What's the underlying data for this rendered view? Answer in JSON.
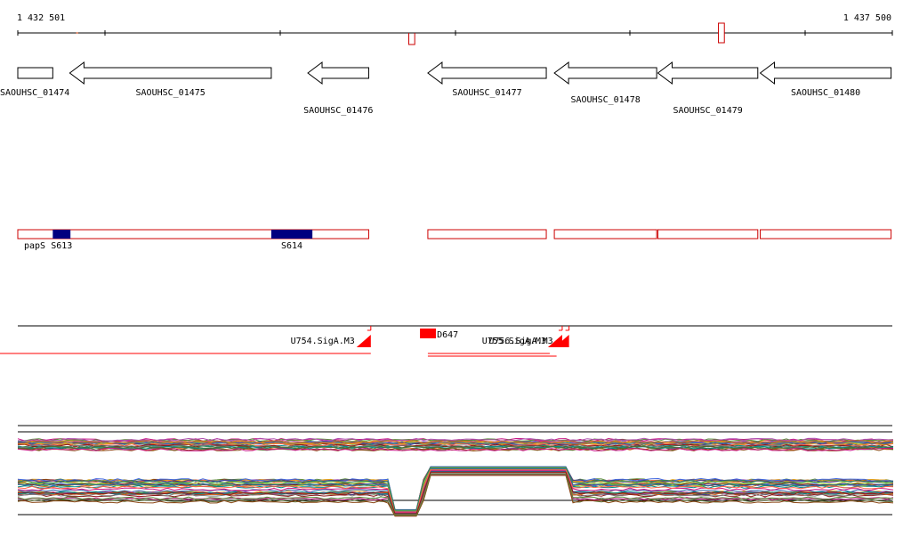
{
  "ruler": {
    "start_label": "1 432 501",
    "end_label": "1 437 500",
    "start": 1432501,
    "end": 1437500,
    "tick_interval": 1000,
    "marks": [
      {
        "type": "inward",
        "from": 1434736,
        "to": 1434770
      },
      {
        "type": "outward",
        "from": 1436506,
        "to": 1436540
      },
      {
        "type": "dot",
        "at": 1432835
      }
    ]
  },
  "genes": [
    {
      "name": "SAOUHSC_01474",
      "start": 1432501,
      "end": 1432701,
      "strand": "+"
    },
    {
      "name": "SAOUHSC_01475",
      "start": 1432798,
      "end": 1433950,
      "strand": "-"
    },
    {
      "name": "SAOUHSC_01476",
      "start": 1434159,
      "end": 1434507,
      "strand": "-"
    },
    {
      "name": "SAOUHSC_01477",
      "start": 1434845,
      "end": 1435522,
      "strand": "-"
    },
    {
      "name": "SAOUHSC_01478",
      "start": 1435568,
      "end": 1436153,
      "strand": "-"
    },
    {
      "name": "SAOUHSC_01479",
      "start": 1436160,
      "end": 1436731,
      "strand": "-"
    },
    {
      "name": "SAOUHSC_01480",
      "start": 1436745,
      "end": 1437493,
      "strand": "-"
    }
  ],
  "operons": [
    {
      "start": 1432501,
      "end": 1434507
    },
    {
      "start": 1434845,
      "end": 1435522
    },
    {
      "start": 1435568,
      "end": 1436153
    },
    {
      "start": 1436160,
      "end": 1436731
    },
    {
      "start": 1436745,
      "end": 1437493
    }
  ],
  "segments": [
    {
      "name": "papS",
      "start": 1432501,
      "end": 1432501
    },
    {
      "name": "S613",
      "start": 1432701,
      "end": 1432802
    },
    {
      "name": "S614",
      "start": 1433950,
      "end": 1434185
    }
  ],
  "promoters": [
    {
      "name": "U754.SigA.M3",
      "at": 1434519,
      "strand": "-"
    },
    {
      "name": "U756.SigA.M3",
      "at": 1435652,
      "strand": "-"
    },
    {
      "name": "U755.SigA.M3",
      "at": 1435613,
      "strand": "-"
    }
  ],
  "terminators": [
    {
      "name": "D647",
      "start": 1434800,
      "end": 1434891
    }
  ],
  "colors": {
    "ruler": "#000000",
    "gene_outline": "#000000",
    "operon": "#cc0000",
    "segment": "#000080",
    "promoter": "#ff0000",
    "terminator": "#ff0000"
  }
}
